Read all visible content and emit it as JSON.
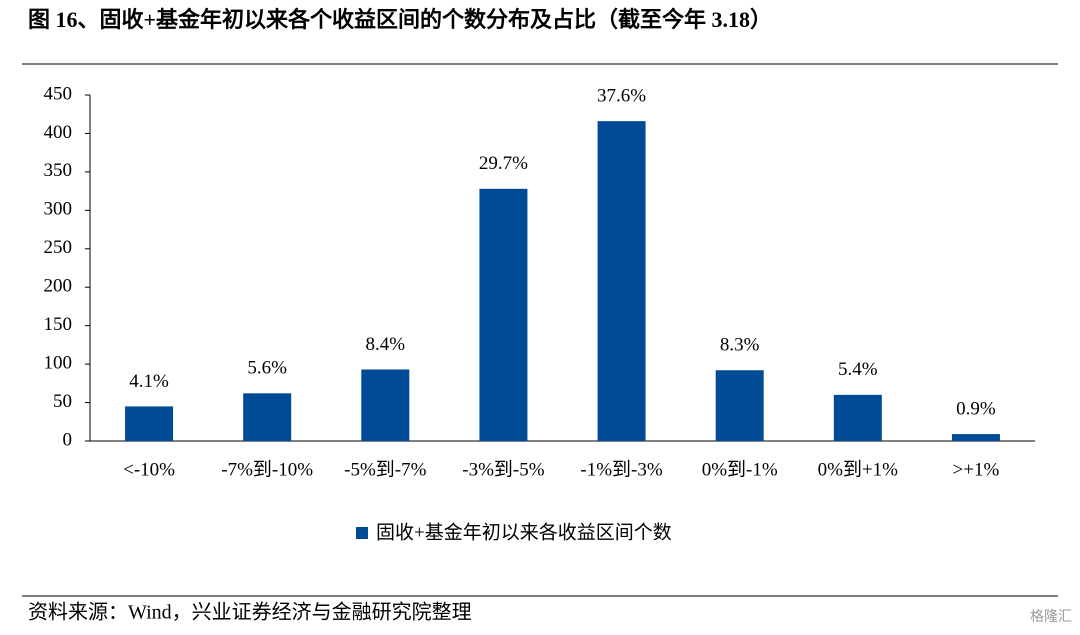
{
  "chart_data": {
    "type": "bar",
    "title": "图 16、固收+基金年初以来各个收益区间的个数分布及占比（截至今年 3.18）",
    "categories": [
      "<-10%",
      "-7%到-10%",
      "-5%到-7%",
      "-3%到-5%",
      "-1%到-3%",
      "0%到-1%",
      "0%到+1%",
      ">+1%"
    ],
    "series": [
      {
        "name": "固收+基金年初以来各收益区间个数",
        "color": "#004a96",
        "values": [
          45,
          62,
          93,
          328,
          416,
          92,
          60,
          9
        ]
      }
    ],
    "bar_labels": [
      "4.1%",
      "5.6%",
      "8.4%",
      "29.7%",
      "37.6%",
      "8.3%",
      "5.4%",
      "0.9%"
    ],
    "ylim": [
      0,
      450
    ],
    "yticks": [
      0,
      50,
      100,
      150,
      200,
      250,
      300,
      350,
      400,
      450
    ],
    "legend": "bottom",
    "source": "资料来源：Wind，兴业证券经济与金融研究院整理",
    "watermark": "格隆汇"
  }
}
